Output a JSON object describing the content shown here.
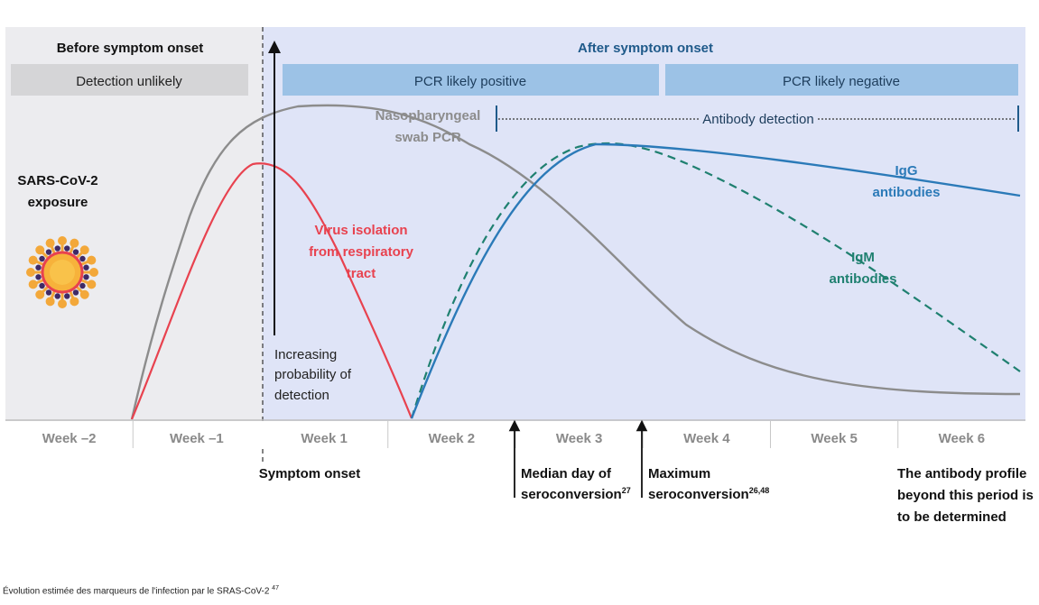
{
  "phases": {
    "before": {
      "title": "Before symptom onset",
      "banner": "Detection unlikely"
    },
    "after": {
      "title": "After symptom onset",
      "banner_positive": "PCR likely positive",
      "banner_negative": "PCR likely negative"
    }
  },
  "exposure": {
    "line1": "SARS-CoV-2",
    "line2": "exposure",
    "icon": "virus-icon"
  },
  "curves": {
    "pcr": {
      "line1": "Nasopharyngeal",
      "line2": "swab PCR",
      "color": "#8c8c8c"
    },
    "virus": {
      "line1": "Virus isolation",
      "line2": "from respiratory",
      "line3": "tract",
      "color": "#e8424f"
    },
    "igg": {
      "line1": "IgG",
      "line2": "antibodies",
      "color": "#2b7ab8"
    },
    "igm": {
      "line1": "IgM",
      "line2": "antibodies",
      "color": "#1f8070"
    }
  },
  "antibody_detection": "Antibody detection",
  "probability": {
    "line1": "Increasing",
    "line2": "probability of",
    "line3": "detection"
  },
  "weeks": [
    "Week –2",
    "Week –1",
    "Week 1",
    "Week 2",
    "Week 3",
    "Week 4",
    "Week 5",
    "Week 6"
  ],
  "annotations": {
    "symptom_onset": "Symptom onset",
    "median": {
      "line1": "Median day of",
      "line2": "seroconversion",
      "ref": "27"
    },
    "maximum": {
      "line1": "Maximum",
      "line2": "seroconversion",
      "ref": "26,48"
    },
    "profile": {
      "line1": "The antibody profile",
      "line2": "beyond this period is",
      "line3": "to be determined"
    }
  },
  "caption": {
    "text": "Évolution estimée des marqueurs de l'infection par le SRAS-CoV-2 ",
    "ref": "47"
  },
  "colors": {
    "before_bg": "#ececef",
    "after_bg": "#dfe4f7",
    "before_banner": "#d5d5d7",
    "after_banner": "#9cc2e6",
    "after_title": "#1f5a8a"
  }
}
